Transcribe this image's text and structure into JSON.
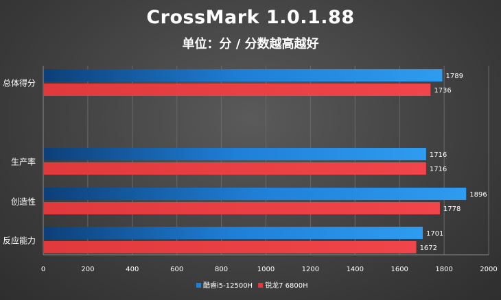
{
  "chart_data": {
    "type": "bar",
    "orientation": "horizontal",
    "title": "CrossMark 1.0.1.88",
    "subtitle": "单位：分 / 分数越高越好",
    "categories": [
      "总体得分",
      "生产率",
      "创造性",
      "反应能力"
    ],
    "series": [
      {
        "name": "酷睿i5-12500H",
        "color": "#1a82d8",
        "values": [
          1789,
          1716,
          1896,
          1701
        ]
      },
      {
        "name": "锐龙7 6800H",
        "color": "#e8373a",
        "values": [
          1736,
          1716,
          1778,
          1672
        ]
      }
    ],
    "xlim": [
      0,
      2000
    ],
    "xticks": [
      "0",
      "200",
      "400",
      "600",
      "800",
      "1000",
      "1200",
      "1400",
      "1600",
      "1800",
      "2000"
    ],
    "grid": true,
    "legend_position": "bottom"
  }
}
